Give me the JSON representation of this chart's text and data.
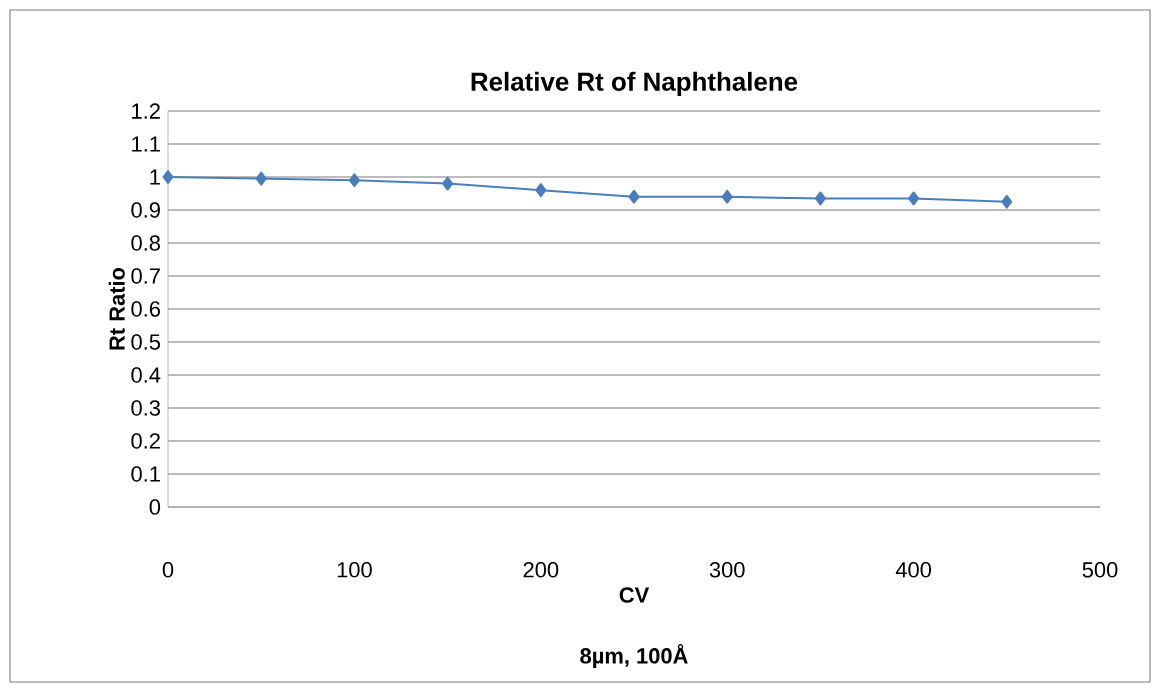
{
  "chart_data": {
    "type": "line",
    "title": "Relative Rt of Naphthalene",
    "xlabel": "CV",
    "ylabel": "Rt Ratio",
    "annotations": [
      "8µm, 100Å"
    ],
    "x": [
      0,
      50,
      100,
      150,
      200,
      250,
      300,
      350,
      400,
      450
    ],
    "series": [
      {
        "color": "#4a7ebb",
        "values": [
          1.0,
          0.995,
          0.99,
          0.98,
          0.96,
          0.94,
          0.94,
          0.935,
          0.935,
          0.925
        ]
      }
    ],
    "xlim": [
      0,
      500
    ],
    "xticks": [
      0,
      100,
      200,
      300,
      400,
      500
    ],
    "ylim": [
      0,
      1.2
    ],
    "yticks": [
      0,
      0.1,
      0.2,
      0.3,
      0.4,
      0.5,
      0.6,
      0.7,
      0.8,
      0.9,
      1,
      1.1,
      1.2
    ],
    "grid": "y",
    "marker": "diamond",
    "line_style": "solid"
  }
}
